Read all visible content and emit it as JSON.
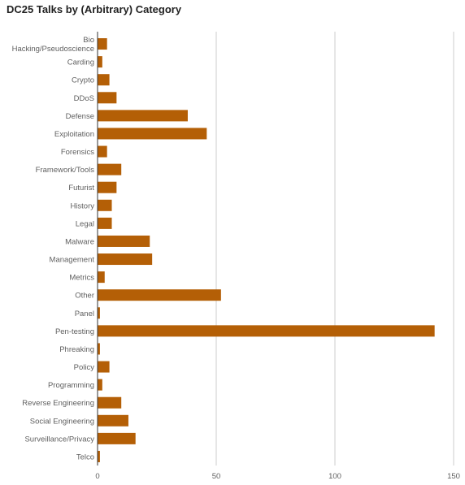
{
  "chart_data": {
    "type": "bar",
    "orientation": "horizontal",
    "title": "DC25 Talks by (Arbitrary) Category",
    "xlabel": "",
    "ylabel": "",
    "xlim": [
      0,
      150
    ],
    "xticks": [
      0,
      50,
      100,
      150
    ],
    "grid": true,
    "legend": "none",
    "color": "#b45f06",
    "categories": [
      "Bio Hacking/Pseudoscience",
      "Carding",
      "Crypto",
      "DDoS",
      "Defense",
      "Exploitation",
      "Forensics",
      "Framework/Tools",
      "Futurist",
      "History",
      "Legal",
      "Malware",
      "Management",
      "Metrics",
      "Other",
      "Panel",
      "Pen-testing",
      "Phreaking",
      "Policy",
      "Programming",
      "Reverse Engineering",
      "Social Engineering",
      "Surveillance/Privacy",
      "Telco"
    ],
    "values": [
      4,
      2,
      5,
      8,
      38,
      46,
      4,
      10,
      8,
      6,
      6,
      22,
      23,
      3,
      52,
      1,
      142,
      1,
      5,
      2,
      10,
      13,
      16,
      1
    ]
  }
}
